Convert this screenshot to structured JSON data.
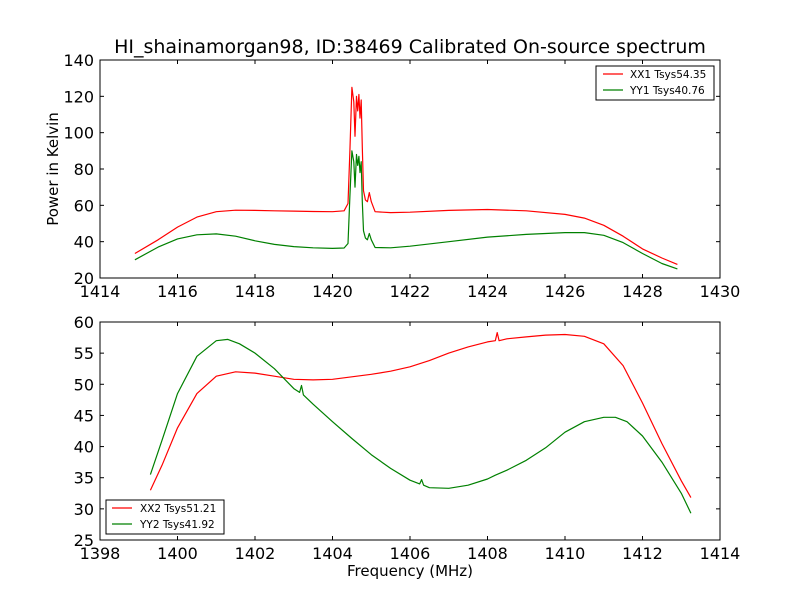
{
  "figure_title": "HI_shainamorgan98, ID:38469 Calibrated On-source spectrum",
  "chart_data": [
    {
      "type": "line",
      "title": "HI_shainamorgan98, ID:38469 Calibrated On-source spectrum",
      "xlabel": "",
      "ylabel": "Power in Kelvin",
      "xlim": [
        1414,
        1430
      ],
      "ylim": [
        20,
        140
      ],
      "xticks": [
        1414,
        1416,
        1418,
        1420,
        1422,
        1424,
        1426,
        1428,
        1430
      ],
      "yticks": [
        20,
        40,
        60,
        80,
        100,
        120,
        140
      ],
      "grid": false,
      "legend_position": "top-right",
      "series": [
        {
          "name": "XX1 Tsys54.35",
          "color": "#ff0000",
          "x": [
            1414.9,
            1415.5,
            1416.0,
            1416.5,
            1417.0,
            1417.5,
            1418.0,
            1418.5,
            1419.0,
            1419.5,
            1420.0,
            1420.3,
            1420.4,
            1420.45,
            1420.5,
            1420.55,
            1420.58,
            1420.62,
            1420.65,
            1420.68,
            1420.71,
            1420.74,
            1420.77,
            1420.8,
            1420.85,
            1420.9,
            1420.95,
            1421.0,
            1421.1,
            1421.5,
            1422.0,
            1423.0,
            1424.0,
            1425.0,
            1426.0,
            1426.5,
            1427.0,
            1427.5,
            1428.0,
            1428.5,
            1428.9
          ],
          "y": [
            33.5,
            41,
            48,
            53.5,
            56.5,
            57.3,
            57.2,
            57,
            56.8,
            56.6,
            56.5,
            57,
            61,
            90,
            125,
            117,
            98,
            120,
            112,
            121,
            108,
            118,
            92,
            68,
            63,
            62,
            67,
            62,
            56.5,
            56,
            56.2,
            57.2,
            57.7,
            57,
            55,
            53,
            49,
            43,
            36,
            31,
            27.5
          ]
        },
        {
          "name": "YY1 Tsys40.76",
          "color": "#008000",
          "x": [
            1414.9,
            1415.5,
            1416.0,
            1416.5,
            1417.0,
            1417.5,
            1418.0,
            1418.5,
            1419.0,
            1419.5,
            1420.0,
            1420.3,
            1420.4,
            1420.45,
            1420.5,
            1420.55,
            1420.58,
            1420.62,
            1420.65,
            1420.68,
            1420.71,
            1420.74,
            1420.77,
            1420.8,
            1420.85,
            1420.9,
            1420.95,
            1421.0,
            1421.1,
            1421.5,
            1422.0,
            1423.0,
            1424.0,
            1425.0,
            1426.0,
            1426.5,
            1427.0,
            1427.5,
            1428.0,
            1428.5,
            1428.9
          ],
          "y": [
            30,
            37,
            41.5,
            43.8,
            44.3,
            43,
            40.5,
            38.5,
            37.3,
            36.6,
            36.3,
            36.5,
            39,
            65,
            90,
            84,
            70,
            88,
            82,
            87,
            78,
            84,
            62,
            46,
            42,
            41,
            44.5,
            41,
            36.8,
            36.6,
            37.5,
            40,
            42.5,
            44,
            45,
            45,
            43.5,
            39.5,
            33.5,
            28,
            25
          ]
        }
      ]
    },
    {
      "type": "line",
      "title": "",
      "xlabel": "Frequency (MHz)",
      "ylabel": "",
      "xlim": [
        1398,
        1414
      ],
      "ylim": [
        25,
        60
      ],
      "xticks": [
        1398,
        1400,
        1402,
        1404,
        1406,
        1408,
        1410,
        1412,
        1414
      ],
      "yticks": [
        25,
        30,
        35,
        40,
        45,
        50,
        55,
        60
      ],
      "grid": false,
      "legend_position": "bottom-left",
      "series": [
        {
          "name": "XX2 Tsys51.21",
          "color": "#ff0000",
          "x": [
            1399.3,
            1399.6,
            1400.0,
            1400.5,
            1401.0,
            1401.5,
            1402.0,
            1402.5,
            1403.0,
            1403.5,
            1404.0,
            1404.5,
            1405.0,
            1405.5,
            1406.0,
            1406.5,
            1407.0,
            1407.5,
            1408.0,
            1408.2,
            1408.25,
            1408.3,
            1408.5,
            1409.0,
            1409.5,
            1410.0,
            1410.5,
            1411.0,
            1411.5,
            1412.0,
            1412.5,
            1413.0,
            1413.25
          ],
          "y": [
            33,
            37,
            43,
            48.5,
            51.3,
            52,
            51.8,
            51.3,
            50.8,
            50.7,
            50.8,
            51.2,
            51.6,
            52.1,
            52.8,
            53.8,
            55,
            56,
            56.8,
            57,
            58.3,
            57,
            57.3,
            57.6,
            57.9,
            58,
            57.7,
            56.5,
            53,
            47,
            40.5,
            34.5,
            31.8
          ]
        },
        {
          "name": "YY2 Tsys41.92",
          "color": "#008000",
          "x": [
            1399.3,
            1399.6,
            1400.0,
            1400.5,
            1401.0,
            1401.3,
            1401.6,
            1402.0,
            1402.5,
            1403.0,
            1403.15,
            1403.2,
            1403.25,
            1403.5,
            1404.0,
            1404.5,
            1405.0,
            1405.5,
            1406.0,
            1406.25,
            1406.3,
            1406.35,
            1406.5,
            1407.0,
            1407.5,
            1408.0,
            1408.2,
            1408.5,
            1409.0,
            1409.5,
            1410.0,
            1410.5,
            1411.0,
            1411.3,
            1411.6,
            1412.0,
            1412.5,
            1413.0,
            1413.25
          ],
          "y": [
            35.5,
            41,
            48.5,
            54.5,
            57,
            57.2,
            56.5,
            55,
            52.5,
            49.3,
            48.7,
            49.8,
            48.3,
            46.8,
            44,
            41.3,
            38.7,
            36.5,
            34.6,
            34,
            34.7,
            33.8,
            33.4,
            33.3,
            33.8,
            34.8,
            35.4,
            36.2,
            37.8,
            39.8,
            42.3,
            44,
            44.7,
            44.7,
            44,
            41.7,
            37.5,
            32.5,
            29.3
          ]
        }
      ]
    }
  ]
}
